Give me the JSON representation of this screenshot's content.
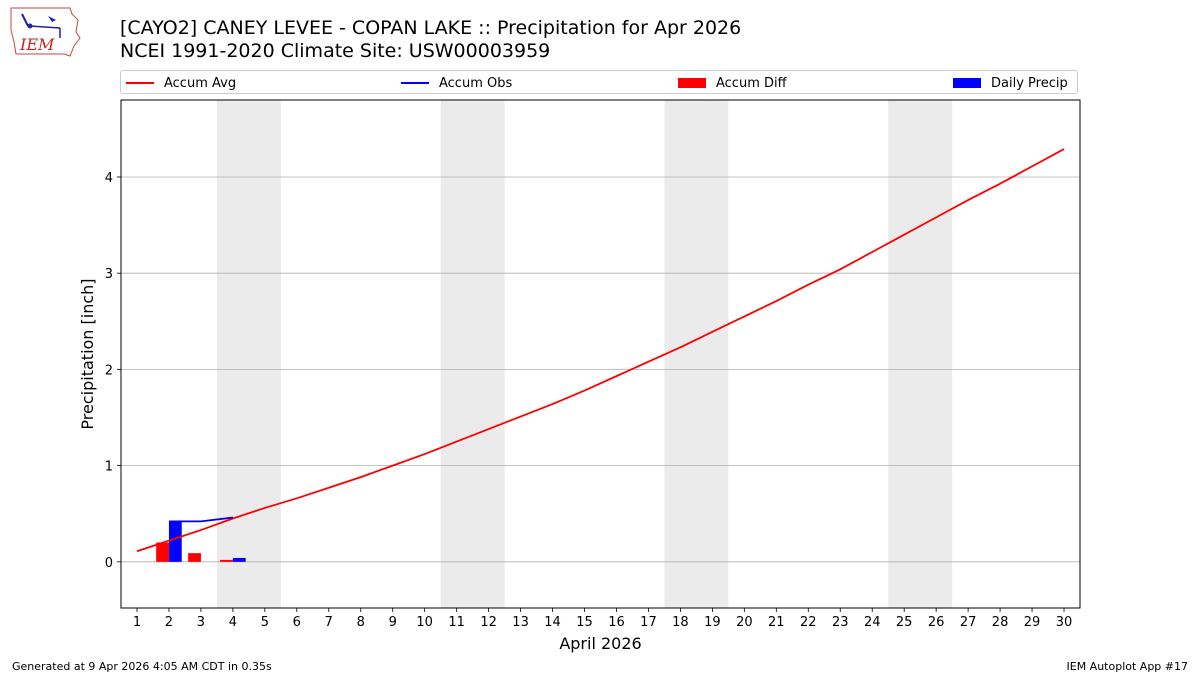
{
  "header": {
    "title_line1": "[CAYO2] CANEY LEVEE - COPAN LAKE :: Precipitation for Apr 2026",
    "title_line2": "NCEI 1991-2020 Climate Site: USW00003959"
  },
  "logo": {
    "text": "IEM"
  },
  "footer": {
    "generated": "Generated at 9 Apr 2026 4:05 AM CDT in 0.35s",
    "app": "IEM Autoplot App #17"
  },
  "legend": {
    "accum_avg": "Accum Avg",
    "accum_obs": "Accum Obs",
    "accum_diff": "Accum Diff",
    "daily_precip": "Daily Precip"
  },
  "colors": {
    "avg": "#ff0000",
    "obs": "#0000ff",
    "diff": "#ff0000",
    "daily": "#0000ff",
    "weekend": "#ebebeb",
    "grid": "#b0b0b0"
  },
  "chart_data": {
    "type": "line",
    "title": "[CAYO2] CANEY LEVEE - COPAN LAKE :: Precipitation for Apr 2026",
    "subtitle": "NCEI 1991-2020 Climate Site: USW00003959",
    "xlabel": "April 2026",
    "ylabel": "Precipitation [inch]",
    "xlim": [
      0.5,
      30.5
    ],
    "ylim": [
      -0.48,
      4.8
    ],
    "x_ticks": [
      1,
      2,
      3,
      4,
      5,
      6,
      7,
      8,
      9,
      10,
      11,
      12,
      13,
      14,
      15,
      16,
      17,
      18,
      19,
      20,
      21,
      22,
      23,
      24,
      25,
      26,
      27,
      28,
      29,
      30
    ],
    "y_ticks": [
      0,
      1,
      2,
      3,
      4
    ],
    "grid": "y",
    "legend_position": "top",
    "weekend_spans": [
      [
        3.5,
        5.5
      ],
      [
        10.5,
        12.5
      ],
      [
        17.5,
        19.5
      ],
      [
        24.5,
        26.5
      ]
    ],
    "series": [
      {
        "name": "Accum Avg",
        "type": "line",
        "x": [
          1,
          2,
          3,
          4,
          5,
          6,
          7,
          8,
          9,
          10,
          11,
          12,
          13,
          14,
          15,
          16,
          17,
          18,
          19,
          20,
          21,
          22,
          23,
          24,
          25,
          26,
          27,
          28,
          29,
          30
        ],
        "values": [
          0.11,
          0.22,
          0.33,
          0.45,
          0.56,
          0.66,
          0.77,
          0.88,
          1.0,
          1.12,
          1.25,
          1.38,
          1.51,
          1.64,
          1.78,
          1.93,
          2.08,
          2.23,
          2.39,
          2.55,
          2.71,
          2.88,
          3.04,
          3.22,
          3.4,
          3.58,
          3.76,
          3.93,
          4.11,
          4.29
        ]
      },
      {
        "name": "Accum Obs",
        "type": "line",
        "x": [
          2,
          3,
          4
        ],
        "values": [
          0.42,
          0.42,
          0.46
        ]
      },
      {
        "name": "Accum Diff",
        "type": "bar",
        "x": [
          2,
          3,
          4
        ],
        "values": [
          0.2,
          0.09,
          0.02
        ]
      },
      {
        "name": "Daily Precip",
        "type": "bar",
        "x": [
          2,
          3,
          4
        ],
        "values": [
          0.42,
          0.0,
          0.04
        ]
      }
    ]
  }
}
